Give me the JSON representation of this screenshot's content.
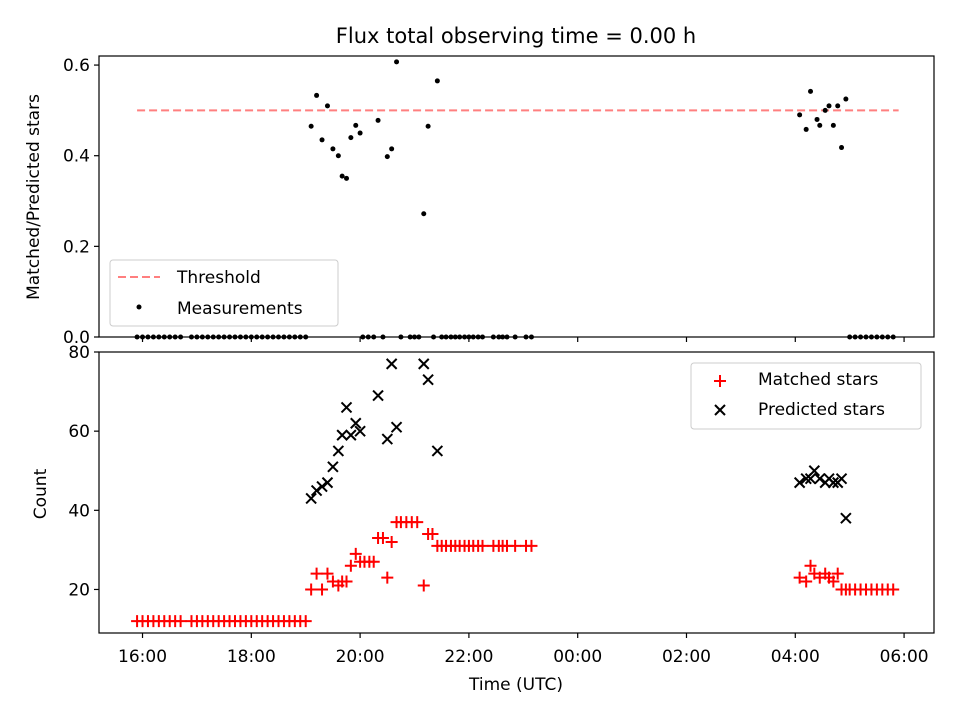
{
  "figure": {
    "title": "Flux total observing time = 0.00 h",
    "xlabel": "Time (UTC)",
    "x_ticks": [
      "16:00",
      "18:00",
      "20:00",
      "22:00",
      "00:00",
      "02:00",
      "04:00",
      "06:00"
    ]
  },
  "chart_data": [
    {
      "type": "scatter",
      "ylabel": "Matched/Predicted stars",
      "ylim": [
        0,
        0.62
      ],
      "y_ticks": [
        "0.0",
        "0.2",
        "0.4",
        "0.6"
      ],
      "x_unit": "hours since 16:00 UTC",
      "xlim": [
        -0.8,
        14.55
      ],
      "threshold": {
        "name": "Threshold",
        "value": 0.5,
        "color": "#ff7f7f",
        "xrange": [
          -0.1,
          13.9
        ]
      },
      "legend": {
        "location": "lower-left",
        "entries": [
          "Threshold",
          "Measurements"
        ]
      },
      "series": [
        {
          "name": "Measurements",
          "color": "#000000",
          "points": [
            [
              3.1,
              0.465
            ],
            [
              3.2,
              0.533
            ],
            [
              3.3,
              0.435
            ],
            [
              3.4,
              0.51
            ],
            [
              3.5,
              0.415
            ],
            [
              3.6,
              0.4
            ],
            [
              3.67,
              0.355
            ],
            [
              3.75,
              0.35
            ],
            [
              3.83,
              0.44
            ],
            [
              3.92,
              0.467
            ],
            [
              4.0,
              0.45
            ],
            [
              4.33,
              0.478
            ],
            [
              4.5,
              0.398
            ],
            [
              4.58,
              0.415
            ],
            [
              4.67,
              0.607
            ],
            [
              5.17,
              0.272
            ],
            [
              5.25,
              0.465
            ],
            [
              5.42,
              0.565
            ],
            [
              12.08,
              0.49
            ],
            [
              12.2,
              0.458
            ],
            [
              12.28,
              0.542
            ],
            [
              12.4,
              0.48
            ],
            [
              12.45,
              0.467
            ],
            [
              12.55,
              0.5
            ],
            [
              12.62,
              0.51
            ],
            [
              12.7,
              0.467
            ],
            [
              12.78,
              0.51
            ],
            [
              12.85,
              0.418
            ],
            [
              12.93,
              0.525
            ],
            [
              -0.1,
              0
            ],
            [
              0.0,
              0
            ],
            [
              0.1,
              0
            ],
            [
              0.2,
              0
            ],
            [
              0.3,
              0
            ],
            [
              0.4,
              0
            ],
            [
              0.5,
              0
            ],
            [
              0.6,
              0
            ],
            [
              0.7,
              0
            ],
            [
              0.9,
              0
            ],
            [
              1.0,
              0
            ],
            [
              1.1,
              0
            ],
            [
              1.2,
              0
            ],
            [
              1.3,
              0
            ],
            [
              1.4,
              0
            ],
            [
              1.5,
              0
            ],
            [
              1.6,
              0
            ],
            [
              1.7,
              0
            ],
            [
              1.8,
              0
            ],
            [
              1.9,
              0
            ],
            [
              2.0,
              0
            ],
            [
              2.1,
              0
            ],
            [
              2.2,
              0
            ],
            [
              2.3,
              0
            ],
            [
              2.4,
              0
            ],
            [
              2.5,
              0
            ],
            [
              2.6,
              0
            ],
            [
              2.7,
              0
            ],
            [
              2.8,
              0
            ],
            [
              2.9,
              0
            ],
            [
              3.0,
              0
            ],
            [
              4.05,
              0
            ],
            [
              4.15,
              0
            ],
            [
              4.25,
              0
            ],
            [
              4.42,
              0
            ],
            [
              4.75,
              0
            ],
            [
              4.92,
              0
            ],
            [
              5.0,
              0
            ],
            [
              5.08,
              0
            ],
            [
              5.35,
              0
            ],
            [
              5.5,
              0
            ],
            [
              5.58,
              0
            ],
            [
              5.67,
              0
            ],
            [
              5.75,
              0
            ],
            [
              5.83,
              0
            ],
            [
              5.92,
              0
            ],
            [
              6.0,
              0
            ],
            [
              6.08,
              0
            ],
            [
              6.17,
              0
            ],
            [
              6.25,
              0
            ],
            [
              6.45,
              0
            ],
            [
              6.55,
              0
            ],
            [
              6.62,
              0
            ],
            [
              6.7,
              0
            ],
            [
              6.85,
              0
            ],
            [
              7.05,
              0
            ],
            [
              7.15,
              0
            ],
            [
              13.0,
              0
            ],
            [
              13.1,
              0
            ],
            [
              13.2,
              0
            ],
            [
              13.3,
              0
            ],
            [
              13.4,
              0
            ],
            [
              13.5,
              0
            ],
            [
              13.6,
              0
            ],
            [
              13.7,
              0
            ],
            [
              13.8,
              0
            ]
          ]
        }
      ]
    },
    {
      "type": "scatter",
      "ylabel": "Count",
      "ylim": [
        9,
        80
      ],
      "y_ticks": [
        "20",
        "40",
        "60",
        "80"
      ],
      "x_unit": "hours since 16:00 UTC",
      "xlim": [
        -0.8,
        14.55
      ],
      "legend": {
        "location": "top-right",
        "entries": [
          "Matched stars",
          "Predicted stars"
        ]
      },
      "series": [
        {
          "name": "Matched stars",
          "marker": "plus",
          "color": "#ff0000",
          "points": [
            [
              -0.1,
              12
            ],
            [
              0.0,
              12
            ],
            [
              0.1,
              12
            ],
            [
              0.2,
              12
            ],
            [
              0.3,
              12
            ],
            [
              0.4,
              12
            ],
            [
              0.5,
              12
            ],
            [
              0.6,
              12
            ],
            [
              0.7,
              12
            ],
            [
              0.9,
              12
            ],
            [
              1.0,
              12
            ],
            [
              1.1,
              12
            ],
            [
              1.2,
              12
            ],
            [
              1.3,
              12
            ],
            [
              1.4,
              12
            ],
            [
              1.5,
              12
            ],
            [
              1.6,
              12
            ],
            [
              1.7,
              12
            ],
            [
              1.8,
              12
            ],
            [
              1.9,
              12
            ],
            [
              2.0,
              12
            ],
            [
              2.1,
              12
            ],
            [
              2.2,
              12
            ],
            [
              2.3,
              12
            ],
            [
              2.4,
              12
            ],
            [
              2.5,
              12
            ],
            [
              2.6,
              12
            ],
            [
              2.7,
              12
            ],
            [
              2.8,
              12
            ],
            [
              2.9,
              12
            ],
            [
              3.0,
              12
            ],
            [
              3.1,
              20
            ],
            [
              3.2,
              24
            ],
            [
              3.3,
              20
            ],
            [
              3.4,
              24
            ],
            [
              3.5,
              22
            ],
            [
              3.6,
              21
            ],
            [
              3.67,
              22
            ],
            [
              3.75,
              22
            ],
            [
              3.83,
              26
            ],
            [
              3.92,
              29
            ],
            [
              4.0,
              27
            ],
            [
              4.08,
              27
            ],
            [
              4.17,
              27
            ],
            [
              4.25,
              27
            ],
            [
              4.33,
              33
            ],
            [
              4.42,
              33
            ],
            [
              4.5,
              23
            ],
            [
              4.58,
              32
            ],
            [
              4.67,
              37
            ],
            [
              4.75,
              37
            ],
            [
              4.85,
              37
            ],
            [
              4.95,
              37
            ],
            [
              5.05,
              37
            ],
            [
              5.17,
              21
            ],
            [
              5.25,
              34
            ],
            [
              5.33,
              34
            ],
            [
              5.42,
              31
            ],
            [
              5.5,
              31
            ],
            [
              5.58,
              31
            ],
            [
              5.67,
              31
            ],
            [
              5.75,
              31
            ],
            [
              5.83,
              31
            ],
            [
              5.92,
              31
            ],
            [
              6.0,
              31
            ],
            [
              6.08,
              31
            ],
            [
              6.17,
              31
            ],
            [
              6.25,
              31
            ],
            [
              6.45,
              31
            ],
            [
              6.55,
              31
            ],
            [
              6.62,
              31
            ],
            [
              6.7,
              31
            ],
            [
              6.85,
              31
            ],
            [
              7.05,
              31
            ],
            [
              7.15,
              31
            ],
            [
              12.08,
              23
            ],
            [
              12.2,
              22
            ],
            [
              12.28,
              26
            ],
            [
              12.35,
              24
            ],
            [
              12.45,
              23
            ],
            [
              12.55,
              24
            ],
            [
              12.62,
              23
            ],
            [
              12.7,
              22
            ],
            [
              12.78,
              24
            ],
            [
              12.85,
              20
            ],
            [
              12.93,
              20
            ],
            [
              13.0,
              20
            ],
            [
              13.1,
              20
            ],
            [
              13.2,
              20
            ],
            [
              13.3,
              20
            ],
            [
              13.4,
              20
            ],
            [
              13.5,
              20
            ],
            [
              13.6,
              20
            ],
            [
              13.7,
              20
            ],
            [
              13.8,
              20
            ]
          ]
        },
        {
          "name": "Predicted stars",
          "marker": "x",
          "color": "#000000",
          "points": [
            [
              3.1,
              43
            ],
            [
              3.2,
              45
            ],
            [
              3.3,
              46
            ],
            [
              3.4,
              47
            ],
            [
              3.5,
              51
            ],
            [
              3.6,
              55
            ],
            [
              3.67,
              59
            ],
            [
              3.75,
              66
            ],
            [
              3.83,
              59
            ],
            [
              3.92,
              62
            ],
            [
              4.0,
              60
            ],
            [
              4.33,
              69
            ],
            [
              4.5,
              58
            ],
            [
              4.58,
              77
            ],
            [
              4.67,
              61
            ],
            [
              5.17,
              77
            ],
            [
              5.25,
              73
            ],
            [
              5.42,
              55
            ],
            [
              12.08,
              47
            ],
            [
              12.2,
              48
            ],
            [
              12.28,
              48
            ],
            [
              12.35,
              50
            ],
            [
              12.45,
              48
            ],
            [
              12.55,
              47
            ],
            [
              12.62,
              48
            ],
            [
              12.7,
              47
            ],
            [
              12.78,
              47
            ],
            [
              12.85,
              48
            ],
            [
              12.93,
              38
            ]
          ]
        }
      ]
    }
  ]
}
